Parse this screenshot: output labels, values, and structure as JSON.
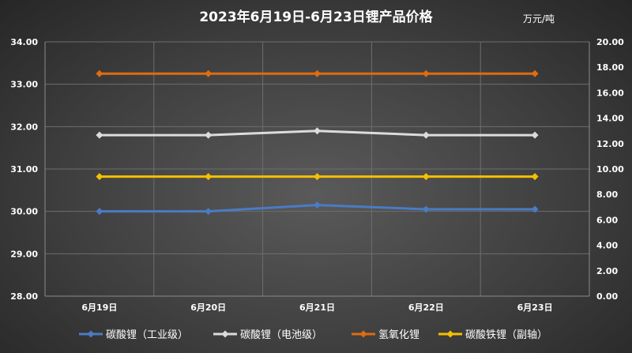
{
  "chart_data": {
    "type": "line",
    "title": "2023年6月19日-6月23日锂产品价格",
    "unit_label": "万元/吨",
    "categories": [
      "6月19日",
      "6月20日",
      "6月21日",
      "6月22日",
      "6月23日"
    ],
    "y_left": {
      "min": 28,
      "max": 34,
      "step": 1,
      "ticks": [
        "28.00",
        "29.00",
        "30.00",
        "31.00",
        "32.00",
        "33.00",
        "34.00"
      ]
    },
    "y_right": {
      "min": 0,
      "max": 20,
      "step": 2,
      "ticks": [
        "0.00",
        "2.00",
        "4.00",
        "6.00",
        "8.00",
        "10.00",
        "12.00",
        "14.00",
        "16.00",
        "18.00",
        "20.00"
      ]
    },
    "grid": true,
    "legend_position": "bottom",
    "series": [
      {
        "name": "碳酸锂（工业级）",
        "axis": "left",
        "color": "#4a7bc4",
        "values": [
          30.0,
          30.0,
          30.15,
          30.05,
          30.05
        ]
      },
      {
        "name": "碳酸锂（电池级）",
        "axis": "left",
        "color": "#dcdcdc",
        "values": [
          31.8,
          31.8,
          31.9,
          31.8,
          31.8
        ]
      },
      {
        "name": "氢氧化锂",
        "axis": "left",
        "color": "#e06c10",
        "values": [
          33.25,
          33.25,
          33.25,
          33.25,
          33.25
        ]
      },
      {
        "name": "碳酸铁锂（副轴）",
        "axis": "right",
        "color": "#f5c000",
        "values": [
          9.4,
          9.4,
          9.4,
          9.4,
          9.4
        ]
      }
    ]
  }
}
